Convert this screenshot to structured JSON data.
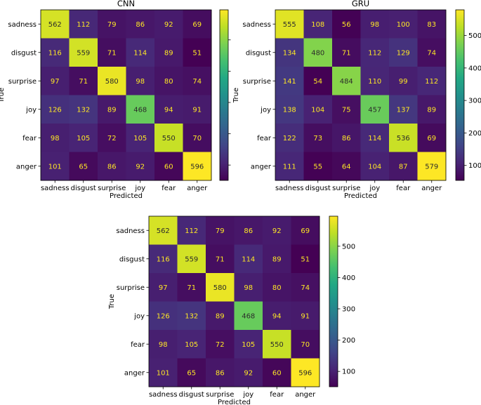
{
  "chart_data": [
    {
      "type": "heatmap",
      "title": "CNN",
      "xlabel": "Predicted",
      "ylabel": "True",
      "categories": [
        "sadness",
        "disgust",
        "surprise",
        "joy",
        "fear",
        "anger"
      ],
      "matrix": [
        [
          562,
          112,
          79,
          86,
          92,
          69
        ],
        [
          116,
          559,
          71,
          114,
          89,
          51
        ],
        [
          97,
          71,
          580,
          98,
          80,
          74
        ],
        [
          126,
          132,
          89,
          468,
          94,
          91
        ],
        [
          98,
          105,
          72,
          105,
          550,
          70
        ],
        [
          101,
          65,
          86,
          92,
          60,
          596
        ]
      ],
      "colorbar": {
        "min": 51,
        "max": 596,
        "ticks": [],
        "tick_values": [
          100,
          200,
          300,
          400,
          500
        ],
        "colormap": "viridis"
      }
    },
    {
      "type": "heatmap",
      "title": "GRU",
      "xlabel": "Predicted",
      "ylabel": "True",
      "categories": [
        "sadness",
        "disgust",
        "surprise",
        "joy",
        "fear",
        "anger"
      ],
      "matrix": [
        [
          555,
          108,
          56,
          98,
          100,
          83
        ],
        [
          134,
          480,
          71,
          112,
          129,
          74
        ],
        [
          141,
          54,
          484,
          110,
          99,
          112
        ],
        [
          138,
          104,
          75,
          457,
          137,
          89
        ],
        [
          122,
          73,
          86,
          114,
          536,
          69
        ],
        [
          111,
          55,
          64,
          104,
          87,
          579
        ]
      ],
      "colorbar": {
        "min": 54,
        "max": 579,
        "ticks": [
          "100",
          "200",
          "300",
          "400",
          "500"
        ],
        "tick_values": [
          100,
          200,
          300,
          400,
          500
        ],
        "colormap": "viridis"
      }
    },
    {
      "type": "heatmap",
      "title": "",
      "xlabel": "Predicted",
      "ylabel": "True",
      "categories": [
        "sadness",
        "disgust",
        "surprise",
        "joy",
        "fear",
        "anger"
      ],
      "matrix": [
        [
          562,
          112,
          79,
          86,
          92,
          69
        ],
        [
          116,
          559,
          71,
          114,
          89,
          51
        ],
        [
          97,
          71,
          580,
          98,
          80,
          74
        ],
        [
          126,
          132,
          89,
          468,
          94,
          91
        ],
        [
          98,
          105,
          72,
          105,
          550,
          70
        ],
        [
          101,
          65,
          86,
          92,
          60,
          596
        ]
      ],
      "colorbar": {
        "min": 51,
        "max": 596,
        "ticks": [
          "100",
          "200",
          "300",
          "400",
          "500"
        ],
        "tick_values": [
          100,
          200,
          300,
          400,
          500
        ],
        "colormap": "viridis"
      }
    }
  ]
}
